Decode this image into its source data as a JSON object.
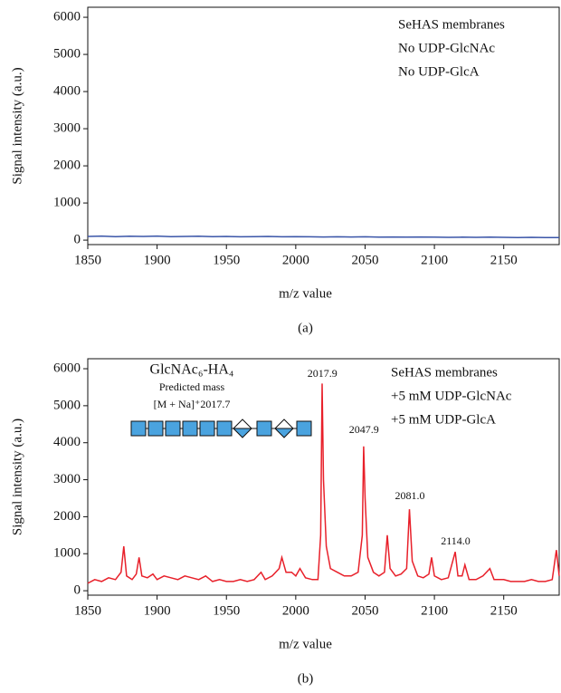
{
  "chart_data": [
    {
      "type": "line",
      "y_label": "Signal intensity (a.u.)",
      "x_label": "m/z value",
      "panel_label": "(a)",
      "annotations": [
        "SeHAS membranes",
        "No UDP-GlcNAc",
        "No UDP-GlcA"
      ],
      "xlim": [
        1850,
        2190
      ],
      "xticks": [
        1850,
        1900,
        1950,
        2000,
        2050,
        2100,
        2150
      ],
      "ylim": [
        -120,
        6270
      ],
      "yticks": [
        0,
        1000,
        2000,
        3000,
        4000,
        5000,
        6000
      ],
      "x": [
        1850,
        1860,
        1870,
        1880,
        1890,
        1900,
        1910,
        1920,
        1930,
        1940,
        1950,
        1960,
        1970,
        1980,
        1990,
        2000,
        2010,
        2020,
        2030,
        2040,
        2050,
        2060,
        2070,
        2080,
        2090,
        2100,
        2110,
        2120,
        2130,
        2140,
        2150,
        2160,
        2170,
        2180,
        2190
      ],
      "series": [
        {
          "color": "#3a55a8",
          "values": [
            100,
            110,
            95,
            105,
            100,
            110,
            95,
            100,
            105,
            95,
            100,
            90,
            95,
            100,
            90,
            95,
            90,
            85,
            90,
            85,
            90,
            80,
            85,
            80,
            85,
            80,
            75,
            80,
            75,
            80,
            75,
            70,
            75,
            70,
            70
          ]
        }
      ]
    },
    {
      "type": "line",
      "y_label": "Signal intensity (a.u.)",
      "x_label": "m/z value",
      "panel_label": "(b)",
      "annotations": [
        "SeHAS membranes",
        "+5 mM UDP-GlcNAc",
        "+5 mM UDP-GlcA"
      ],
      "structure_title": "GlcNAc₆-HA₄",
      "structure_note": "Predicted mass",
      "structure_mass": "[M + Na]⁺2017.7",
      "peak_labels": [
        {
          "x": 2017.9,
          "label": "2017.9"
        },
        {
          "x": 2047.9,
          "label": "2047.9"
        },
        {
          "x": 2081.0,
          "label": "2081.0"
        },
        {
          "x": 2114.0,
          "label": "2114.0"
        }
      ],
      "xlim": [
        1850,
        2190
      ],
      "xticks": [
        1850,
        1900,
        1950,
        2000,
        2050,
        2100,
        2150
      ],
      "ylim": [
        -120,
        6270
      ],
      "yticks": [
        0,
        1000,
        2000,
        3000,
        4000,
        5000,
        6000
      ],
      "x": [
        1850,
        1855,
        1860,
        1865,
        1870,
        1874,
        1876,
        1878,
        1882,
        1885,
        1887,
        1889,
        1893,
        1897,
        1900,
        1905,
        1910,
        1915,
        1920,
        1925,
        1930,
        1935,
        1940,
        1945,
        1950,
        1955,
        1960,
        1965,
        1970,
        1975,
        1978,
        1983,
        1988,
        1990,
        1993,
        1997,
        2000,
        2003,
        2007,
        2012,
        2016,
        2018,
        2019,
        2020,
        2022,
        2025,
        2030,
        2035,
        2040,
        2045,
        2048,
        2049,
        2050,
        2052,
        2056,
        2060,
        2064,
        2066,
        2068,
        2072,
        2076,
        2080,
        2082,
        2084,
        2088,
        2092,
        2096,
        2098,
        2100,
        2105,
        2110,
        2115,
        2117,
        2120,
        2122,
        2125,
        2130,
        2135,
        2140,
        2143,
        2150,
        2155,
        2160,
        2165,
        2170,
        2175,
        2180,
        2185,
        2188,
        2190
      ],
      "series": [
        {
          "color": "#e8202a",
          "values": [
            200,
            300,
            250,
            350,
            300,
            500,
            1200,
            400,
            300,
            450,
            900,
            400,
            350,
            450,
            300,
            400,
            350,
            300,
            400,
            350,
            300,
            400,
            250,
            300,
            250,
            250,
            300,
            250,
            300,
            500,
            300,
            400,
            600,
            900,
            500,
            500,
            400,
            600,
            350,
            300,
            300,
            1500,
            5600,
            3000,
            1200,
            600,
            500,
            400,
            400,
            500,
            1500,
            3900,
            2500,
            900,
            500,
            400,
            500,
            1500,
            600,
            400,
            450,
            600,
            2200,
            800,
            400,
            350,
            450,
            900,
            400,
            300,
            350,
            1050,
            400,
            400,
            700,
            300,
            300,
            400,
            600,
            300,
            300,
            250,
            250,
            250,
            300,
            250,
            250,
            300,
            1100,
            400
          ]
        }
      ]
    }
  ]
}
